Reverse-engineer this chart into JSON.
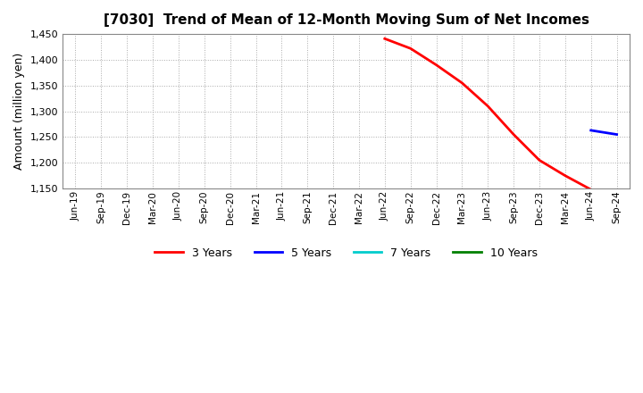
{
  "title": "[7030]  Trend of Mean of 12-Month Moving Sum of Net Incomes",
  "ylabel": "Amount (million yen)",
  "ylim": [
    1150,
    1450
  ],
  "yticks": [
    1150,
    1200,
    1250,
    1300,
    1350,
    1400,
    1450
  ],
  "bg_color": "#ffffff",
  "plot_bg_color": "#ffffff",
  "grid_color": "#aaaaaa",
  "series": {
    "3years": {
      "color": "#ff0000",
      "x": [
        "Jun-22",
        "Sep-22",
        "Dec-22",
        "Mar-23",
        "Jun-23",
        "Sep-23",
        "Dec-23",
        "Mar-24",
        "Jun-24"
      ],
      "y": [
        1441,
        1422,
        1390,
        1355,
        1310,
        1255,
        1205,
        1175,
        1148
      ]
    },
    "5years": {
      "color": "#0000ff",
      "x": [
        "Jun-24",
        "Sep-24"
      ],
      "y": [
        1263,
        1255
      ]
    },
    "7years": {
      "color": "#00cccc",
      "x": [],
      "y": []
    },
    "10years": {
      "color": "#008000",
      "x": [],
      "y": []
    }
  },
  "all_xticks": [
    "Jun-19",
    "Sep-19",
    "Dec-19",
    "Mar-20",
    "Jun-20",
    "Sep-20",
    "Dec-20",
    "Mar-21",
    "Jun-21",
    "Sep-21",
    "Dec-21",
    "Mar-22",
    "Jun-22",
    "Sep-22",
    "Dec-22",
    "Mar-23",
    "Jun-23",
    "Sep-23",
    "Dec-23",
    "Mar-24",
    "Jun-24",
    "Sep-24"
  ],
  "legend": [
    {
      "label": "3 Years",
      "color": "#ff0000"
    },
    {
      "label": "5 Years",
      "color": "#0000ff"
    },
    {
      "label": "7 Years",
      "color": "#00cccc"
    },
    {
      "label": "10 Years",
      "color": "#008000"
    }
  ],
  "title_fontsize": 11,
  "ylabel_fontsize": 9,
  "tick_fontsize": 8,
  "xtick_fontsize": 7.5,
  "legend_fontsize": 9,
  "line_width": 2.0
}
